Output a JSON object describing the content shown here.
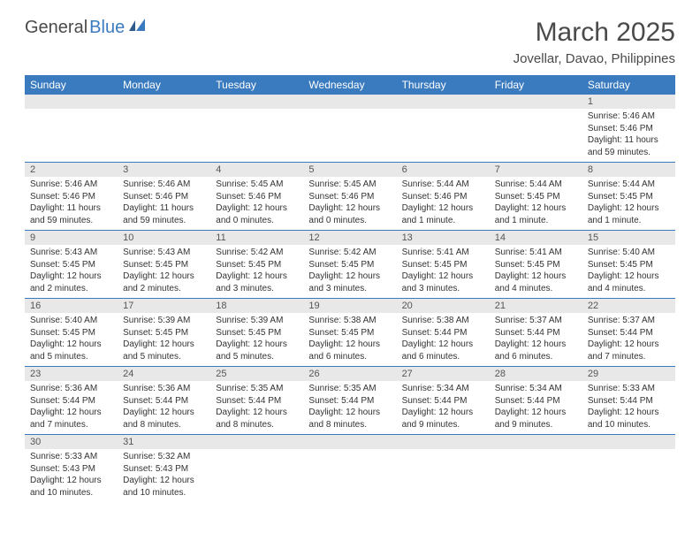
{
  "logo": {
    "dark": "General",
    "blue": "Blue"
  },
  "title": "March 2025",
  "location": "Jovellar, Davao, Philippines",
  "colors": {
    "header_blue": "#3a7bbf",
    "gray_bg": "#e8e8e8",
    "text": "#333333"
  },
  "weekdays": [
    "Sunday",
    "Monday",
    "Tuesday",
    "Wednesday",
    "Thursday",
    "Friday",
    "Saturday"
  ],
  "weeks": [
    [
      null,
      null,
      null,
      null,
      null,
      null,
      {
        "n": "1",
        "sr": "5:46 AM",
        "ss": "5:46 PM",
        "dl": "11 hours and 59 minutes."
      }
    ],
    [
      {
        "n": "2",
        "sr": "5:46 AM",
        "ss": "5:46 PM",
        "dl": "11 hours and 59 minutes."
      },
      {
        "n": "3",
        "sr": "5:46 AM",
        "ss": "5:46 PM",
        "dl": "11 hours and 59 minutes."
      },
      {
        "n": "4",
        "sr": "5:45 AM",
        "ss": "5:46 PM",
        "dl": "12 hours and 0 minutes."
      },
      {
        "n": "5",
        "sr": "5:45 AM",
        "ss": "5:46 PM",
        "dl": "12 hours and 0 minutes."
      },
      {
        "n": "6",
        "sr": "5:44 AM",
        "ss": "5:46 PM",
        "dl": "12 hours and 1 minute."
      },
      {
        "n": "7",
        "sr": "5:44 AM",
        "ss": "5:45 PM",
        "dl": "12 hours and 1 minute."
      },
      {
        "n": "8",
        "sr": "5:44 AM",
        "ss": "5:45 PM",
        "dl": "12 hours and 1 minute."
      }
    ],
    [
      {
        "n": "9",
        "sr": "5:43 AM",
        "ss": "5:45 PM",
        "dl": "12 hours and 2 minutes."
      },
      {
        "n": "10",
        "sr": "5:43 AM",
        "ss": "5:45 PM",
        "dl": "12 hours and 2 minutes."
      },
      {
        "n": "11",
        "sr": "5:42 AM",
        "ss": "5:45 PM",
        "dl": "12 hours and 3 minutes."
      },
      {
        "n": "12",
        "sr": "5:42 AM",
        "ss": "5:45 PM",
        "dl": "12 hours and 3 minutes."
      },
      {
        "n": "13",
        "sr": "5:41 AM",
        "ss": "5:45 PM",
        "dl": "12 hours and 3 minutes."
      },
      {
        "n": "14",
        "sr": "5:41 AM",
        "ss": "5:45 PM",
        "dl": "12 hours and 4 minutes."
      },
      {
        "n": "15",
        "sr": "5:40 AM",
        "ss": "5:45 PM",
        "dl": "12 hours and 4 minutes."
      }
    ],
    [
      {
        "n": "16",
        "sr": "5:40 AM",
        "ss": "5:45 PM",
        "dl": "12 hours and 5 minutes."
      },
      {
        "n": "17",
        "sr": "5:39 AM",
        "ss": "5:45 PM",
        "dl": "12 hours and 5 minutes."
      },
      {
        "n": "18",
        "sr": "5:39 AM",
        "ss": "5:45 PM",
        "dl": "12 hours and 5 minutes."
      },
      {
        "n": "19",
        "sr": "5:38 AM",
        "ss": "5:45 PM",
        "dl": "12 hours and 6 minutes."
      },
      {
        "n": "20",
        "sr": "5:38 AM",
        "ss": "5:44 PM",
        "dl": "12 hours and 6 minutes."
      },
      {
        "n": "21",
        "sr": "5:37 AM",
        "ss": "5:44 PM",
        "dl": "12 hours and 6 minutes."
      },
      {
        "n": "22",
        "sr": "5:37 AM",
        "ss": "5:44 PM",
        "dl": "12 hours and 7 minutes."
      }
    ],
    [
      {
        "n": "23",
        "sr": "5:36 AM",
        "ss": "5:44 PM",
        "dl": "12 hours and 7 minutes."
      },
      {
        "n": "24",
        "sr": "5:36 AM",
        "ss": "5:44 PM",
        "dl": "12 hours and 8 minutes."
      },
      {
        "n": "25",
        "sr": "5:35 AM",
        "ss": "5:44 PM",
        "dl": "12 hours and 8 minutes."
      },
      {
        "n": "26",
        "sr": "5:35 AM",
        "ss": "5:44 PM",
        "dl": "12 hours and 8 minutes."
      },
      {
        "n": "27",
        "sr": "5:34 AM",
        "ss": "5:44 PM",
        "dl": "12 hours and 9 minutes."
      },
      {
        "n": "28",
        "sr": "5:34 AM",
        "ss": "5:44 PM",
        "dl": "12 hours and 9 minutes."
      },
      {
        "n": "29",
        "sr": "5:33 AM",
        "ss": "5:44 PM",
        "dl": "12 hours and 10 minutes."
      }
    ],
    [
      {
        "n": "30",
        "sr": "5:33 AM",
        "ss": "5:43 PM",
        "dl": "12 hours and 10 minutes."
      },
      {
        "n": "31",
        "sr": "5:32 AM",
        "ss": "5:43 PM",
        "dl": "12 hours and 10 minutes."
      },
      null,
      null,
      null,
      null,
      null
    ]
  ],
  "labels": {
    "sunrise": "Sunrise: ",
    "sunset": "Sunset: ",
    "daylight": "Daylight: "
  }
}
